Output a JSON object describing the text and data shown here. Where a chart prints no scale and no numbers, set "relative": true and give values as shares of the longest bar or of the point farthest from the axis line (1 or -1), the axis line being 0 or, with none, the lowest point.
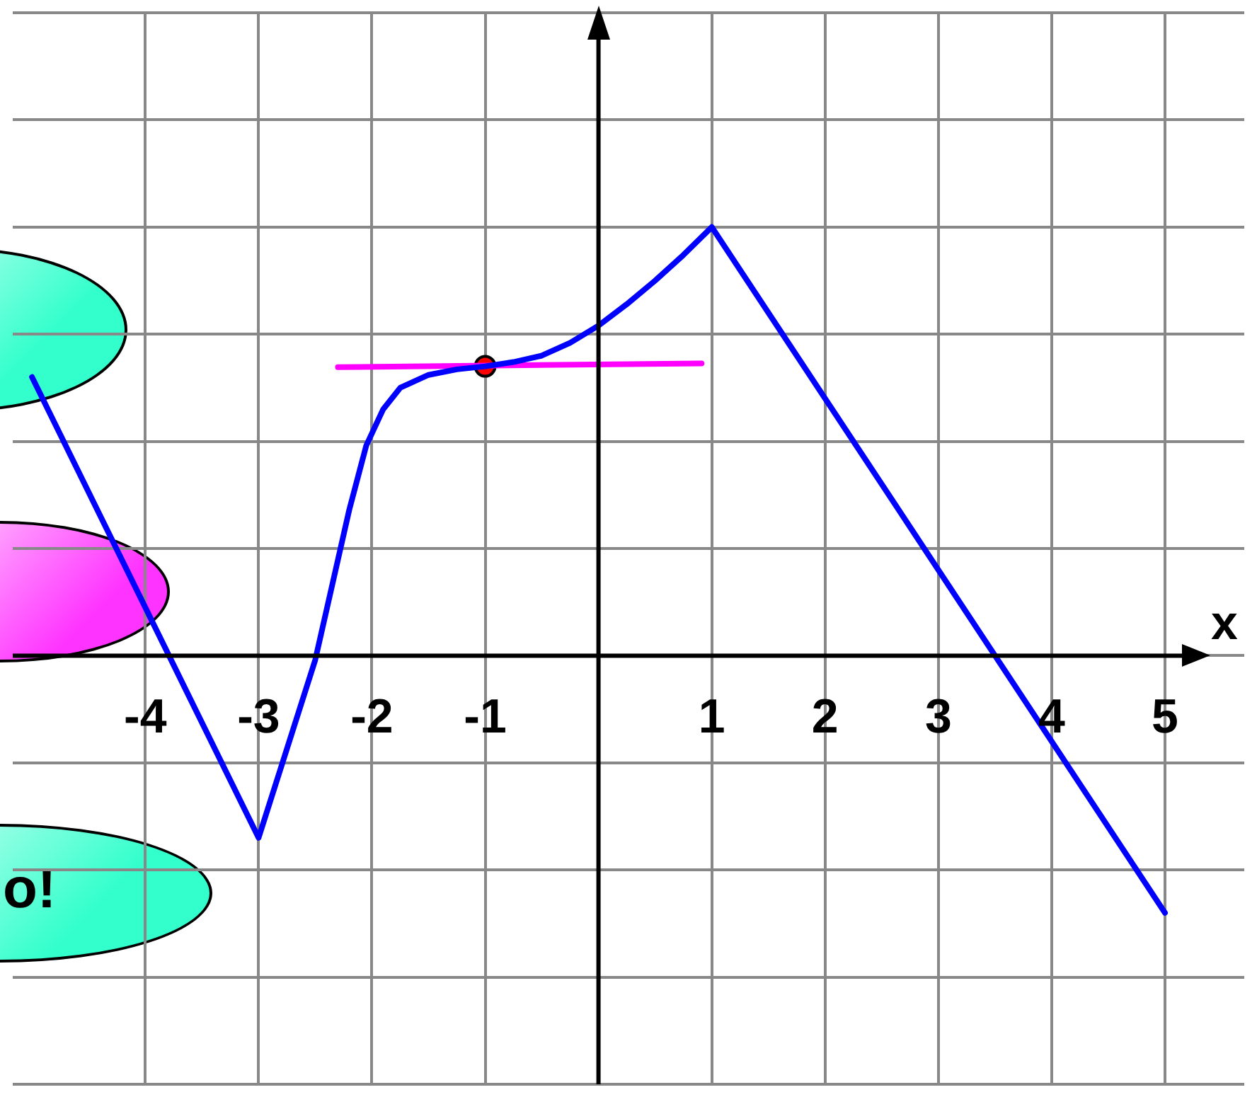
{
  "chart_data": {
    "type": "line",
    "relative": true,
    "xlabel": "x",
    "xlim": [
      -5.17,
      5.7
    ],
    "xticks": [
      -4,
      -3,
      -2,
      -1,
      1,
      2,
      3,
      4,
      5
    ],
    "tick_labels": "x",
    "grid": true,
    "legend": false,
    "marker": "none",
    "annotations": [
      "o!"
    ],
    "series": [
      {
        "color": "#0000ff",
        "x": [
          -5,
          -3,
          -2.5,
          -2.2,
          -2.05,
          -1.9,
          -1.75,
          -1.5,
          -1.25,
          -1,
          -0.75,
          -0.5,
          -0.25,
          0,
          0.25,
          0.5,
          0.75,
          1,
          5
        ],
        "values": [
          0.65,
          -0.425,
          -0.01,
          0.34,
          0.49,
          0.575,
          0.625,
          0.655,
          0.668,
          0.675,
          0.685,
          0.7,
          0.73,
          0.77,
          0.82,
          0.875,
          0.935,
          1,
          -0.6
        ]
      },
      {
        "type": "line",
        "color": "#ff00ff",
        "x": [
          -2.3,
          0.91
        ],
        "values": [
          0.673,
          0.682
        ]
      },
      {
        "type": "scatter",
        "color": "#ff0000",
        "marker": "circle",
        "x": [
          -1
        ],
        "values": [
          0.675
        ]
      }
    ]
  }
}
